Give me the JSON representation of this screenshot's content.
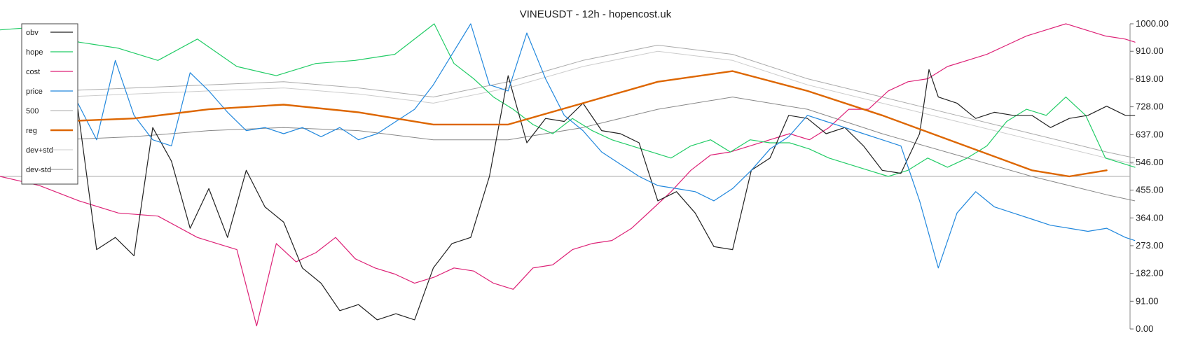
{
  "chart_data": {
    "type": "line",
    "title": "VINEUSDT - 12h - hopencost.uk",
    "xlabel": "",
    "ylabel": "",
    "ylim": [
      0,
      1000
    ],
    "y_ticks": [
      "1000.00",
      "910.00",
      "819.00",
      "728.00",
      "637.00",
      "546.00",
      "455.00",
      "364.00",
      "273.00",
      "182.00",
      "91.00",
      "0.00"
    ],
    "y_tick_values": [
      1000,
      910,
      819,
      728,
      637,
      546,
      455,
      364,
      273,
      182,
      91,
      0
    ],
    "reference_line": 500,
    "grid": false,
    "legend_position": "top-left",
    "x_count": 230,
    "series": [
      {
        "name": "obv",
        "color": "#222222",
        "width": 1.2,
        "start": 12,
        "points": [
          [
            0,
            670
          ],
          [
            4,
            720
          ],
          [
            8,
            260
          ],
          [
            12,
            300
          ],
          [
            16,
            240
          ],
          [
            20,
            660
          ],
          [
            24,
            550
          ],
          [
            28,
            330
          ],
          [
            32,
            460
          ],
          [
            36,
            300
          ],
          [
            40,
            520
          ],
          [
            44,
            400
          ],
          [
            48,
            350
          ],
          [
            52,
            200
          ],
          [
            56,
            150
          ],
          [
            60,
            60
          ],
          [
            64,
            80
          ],
          [
            68,
            30
          ],
          [
            72,
            50
          ],
          [
            76,
            30
          ],
          [
            80,
            200
          ],
          [
            84,
            280
          ],
          [
            88,
            300
          ],
          [
            92,
            500
          ],
          [
            96,
            830
          ],
          [
            100,
            610
          ],
          [
            104,
            690
          ],
          [
            108,
            680
          ],
          [
            112,
            740
          ],
          [
            116,
            650
          ],
          [
            120,
            640
          ],
          [
            124,
            610
          ],
          [
            128,
            420
          ],
          [
            132,
            450
          ],
          [
            136,
            380
          ],
          [
            140,
            270
          ],
          [
            144,
            260
          ],
          [
            148,
            520
          ],
          [
            152,
            560
          ],
          [
            156,
            700
          ],
          [
            160,
            690
          ],
          [
            164,
            640
          ],
          [
            168,
            660
          ],
          [
            172,
            600
          ],
          [
            176,
            520
          ],
          [
            180,
            510
          ],
          [
            184,
            640
          ],
          [
            186,
            850
          ],
          [
            188,
            760
          ],
          [
            192,
            740
          ],
          [
            196,
            690
          ],
          [
            200,
            710
          ],
          [
            204,
            700
          ],
          [
            208,
            700
          ],
          [
            212,
            660
          ],
          [
            216,
            690
          ],
          [
            220,
            700
          ],
          [
            224,
            730
          ],
          [
            228,
            700
          ],
          [
            230,
            700
          ]
        ]
      },
      {
        "name": "hope",
        "color": "#22cc66",
        "width": 1.2,
        "start": 0,
        "points": [
          [
            0,
            980
          ],
          [
            8,
            990
          ],
          [
            16,
            940
          ],
          [
            24,
            920
          ],
          [
            32,
            880
          ],
          [
            40,
            950
          ],
          [
            48,
            860
          ],
          [
            56,
            830
          ],
          [
            64,
            870
          ],
          [
            72,
            880
          ],
          [
            80,
            900
          ],
          [
            88,
            1000
          ],
          [
            92,
            870
          ],
          [
            96,
            820
          ],
          [
            100,
            760
          ],
          [
            104,
            720
          ],
          [
            108,
            670
          ],
          [
            112,
            640
          ],
          [
            116,
            690
          ],
          [
            120,
            650
          ],
          [
            124,
            620
          ],
          [
            128,
            600
          ],
          [
            132,
            580
          ],
          [
            136,
            560
          ],
          [
            140,
            600
          ],
          [
            144,
            620
          ],
          [
            148,
            580
          ],
          [
            152,
            620
          ],
          [
            156,
            610
          ],
          [
            160,
            610
          ],
          [
            164,
            590
          ],
          [
            168,
            560
          ],
          [
            172,
            540
          ],
          [
            176,
            520
          ],
          [
            180,
            500
          ],
          [
            184,
            520
          ],
          [
            188,
            560
          ],
          [
            192,
            530
          ],
          [
            196,
            560
          ],
          [
            200,
            600
          ],
          [
            204,
            680
          ],
          [
            208,
            720
          ],
          [
            212,
            700
          ],
          [
            216,
            760
          ],
          [
            220,
            700
          ],
          [
            224,
            560
          ],
          [
            228,
            540
          ],
          [
            230,
            530
          ]
        ]
      },
      {
        "name": "cost",
        "color": "#dd2277",
        "width": 1.2,
        "start": 0,
        "points": [
          [
            0,
            500
          ],
          [
            8,
            470
          ],
          [
            16,
            420
          ],
          [
            24,
            380
          ],
          [
            32,
            370
          ],
          [
            40,
            300
          ],
          [
            44,
            280
          ],
          [
            48,
            260
          ],
          [
            52,
            10
          ],
          [
            56,
            280
          ],
          [
            60,
            220
          ],
          [
            64,
            250
          ],
          [
            68,
            300
          ],
          [
            72,
            230
          ],
          [
            76,
            200
          ],
          [
            80,
            180
          ],
          [
            84,
            150
          ],
          [
            88,
            170
          ],
          [
            92,
            200
          ],
          [
            96,
            190
          ],
          [
            100,
            150
          ],
          [
            104,
            130
          ],
          [
            108,
            200
          ],
          [
            112,
            210
          ],
          [
            116,
            260
          ],
          [
            120,
            280
          ],
          [
            124,
            290
          ],
          [
            128,
            330
          ],
          [
            132,
            390
          ],
          [
            136,
            450
          ],
          [
            140,
            520
          ],
          [
            144,
            570
          ],
          [
            148,
            580
          ],
          [
            152,
            600
          ],
          [
            156,
            620
          ],
          [
            160,
            640
          ],
          [
            164,
            620
          ],
          [
            168,
            660
          ],
          [
            172,
            720
          ],
          [
            176,
            720
          ],
          [
            180,
            780
          ],
          [
            184,
            810
          ],
          [
            188,
            820
          ],
          [
            192,
            860
          ],
          [
            196,
            880
          ],
          [
            200,
            900
          ],
          [
            204,
            930
          ],
          [
            208,
            960
          ],
          [
            212,
            980
          ],
          [
            216,
            1000
          ],
          [
            220,
            980
          ],
          [
            224,
            960
          ],
          [
            228,
            950
          ],
          [
            230,
            940
          ]
        ]
      },
      {
        "name": "price",
        "color": "#2288dd",
        "width": 1.2,
        "start": 12,
        "points": [
          [
            0,
            700
          ],
          [
            4,
            740
          ],
          [
            8,
            620
          ],
          [
            12,
            880
          ],
          [
            16,
            700
          ],
          [
            20,
            620
          ],
          [
            24,
            600
          ],
          [
            28,
            840
          ],
          [
            32,
            780
          ],
          [
            36,
            710
          ],
          [
            40,
            650
          ],
          [
            44,
            660
          ],
          [
            48,
            640
          ],
          [
            52,
            660
          ],
          [
            56,
            630
          ],
          [
            60,
            660
          ],
          [
            64,
            620
          ],
          [
            68,
            640
          ],
          [
            72,
            680
          ],
          [
            76,
            720
          ],
          [
            80,
            800
          ],
          [
            84,
            900
          ],
          [
            88,
            1000
          ],
          [
            92,
            800
          ],
          [
            96,
            780
          ],
          [
            100,
            970
          ],
          [
            104,
            820
          ],
          [
            108,
            700
          ],
          [
            112,
            650
          ],
          [
            116,
            580
          ],
          [
            120,
            540
          ],
          [
            124,
            500
          ],
          [
            128,
            470
          ],
          [
            132,
            460
          ],
          [
            136,
            450
          ],
          [
            140,
            420
          ],
          [
            144,
            460
          ],
          [
            148,
            520
          ],
          [
            152,
            590
          ],
          [
            156,
            630
          ],
          [
            160,
            700
          ],
          [
            164,
            680
          ],
          [
            168,
            660
          ],
          [
            172,
            640
          ],
          [
            176,
            620
          ],
          [
            180,
            600
          ],
          [
            184,
            420
          ],
          [
            188,
            200
          ],
          [
            192,
            380
          ],
          [
            196,
            450
          ],
          [
            200,
            400
          ],
          [
            204,
            380
          ],
          [
            208,
            360
          ],
          [
            212,
            340
          ],
          [
            216,
            330
          ],
          [
            220,
            320
          ],
          [
            224,
            330
          ],
          [
            228,
            300
          ],
          [
            230,
            290
          ]
        ]
      },
      {
        "name": "500",
        "color": "#aaaaaa",
        "width": 1.0,
        "start": 12,
        "points": [
          [
            0,
            780
          ],
          [
            16,
            790
          ],
          [
            32,
            800
          ],
          [
            48,
            810
          ],
          [
            64,
            790
          ],
          [
            80,
            760
          ],
          [
            96,
            810
          ],
          [
            112,
            880
          ],
          [
            128,
            930
          ],
          [
            144,
            900
          ],
          [
            160,
            820
          ],
          [
            176,
            760
          ],
          [
            192,
            700
          ],
          [
            208,
            640
          ],
          [
            224,
            580
          ],
          [
            230,
            560
          ]
        ]
      },
      {
        "name": "reg",
        "color": "#dd6600",
        "width": 2.4,
        "start": 12,
        "points": [
          [
            0,
            680
          ],
          [
            16,
            690
          ],
          [
            32,
            720
          ],
          [
            48,
            735
          ],
          [
            64,
            710
          ],
          [
            80,
            670
          ],
          [
            96,
            670
          ],
          [
            112,
            740
          ],
          [
            128,
            810
          ],
          [
            144,
            845
          ],
          [
            160,
            780
          ],
          [
            176,
            700
          ],
          [
            192,
            610
          ],
          [
            208,
            520
          ],
          [
            216,
            500
          ],
          [
            224,
            520
          ]
        ]
      },
      {
        "name": "dev+std",
        "color": "#cccccc",
        "width": 1.0,
        "start": 12,
        "points": [
          [
            0,
            760
          ],
          [
            16,
            770
          ],
          [
            32,
            780
          ],
          [
            48,
            790
          ],
          [
            64,
            770
          ],
          [
            80,
            740
          ],
          [
            96,
            790
          ],
          [
            112,
            860
          ],
          [
            128,
            910
          ],
          [
            144,
            880
          ],
          [
            160,
            800
          ],
          [
            176,
            740
          ],
          [
            192,
            680
          ],
          [
            208,
            620
          ],
          [
            224,
            560
          ],
          [
            230,
            540
          ]
        ]
      },
      {
        "name": "dev-std",
        "color": "#888888",
        "width": 1.0,
        "start": 12,
        "points": [
          [
            0,
            620
          ],
          [
            16,
            630
          ],
          [
            32,
            650
          ],
          [
            48,
            660
          ],
          [
            64,
            650
          ],
          [
            80,
            620
          ],
          [
            96,
            620
          ],
          [
            112,
            660
          ],
          [
            128,
            720
          ],
          [
            144,
            760
          ],
          [
            160,
            720
          ],
          [
            176,
            640
          ],
          [
            192,
            570
          ],
          [
            208,
            500
          ],
          [
            224,
            440
          ],
          [
            230,
            420
          ]
        ]
      }
    ]
  }
}
